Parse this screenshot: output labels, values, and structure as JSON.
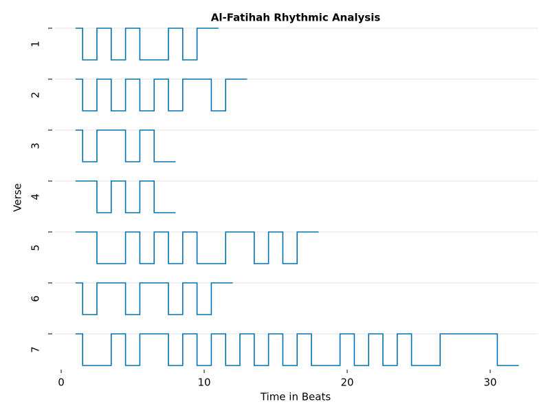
{
  "chart_data": {
    "type": "step",
    "title": "Al-Fatihah Rhythmic Analysis",
    "x_label": "Time in Beats",
    "y_label": "Verse",
    "categories": [
      "1",
      "2",
      "3",
      "4",
      "5",
      "6",
      "7"
    ],
    "color": "#0072b2",
    "xlim": [
      -0.5,
      33.5
    ],
    "xticks": [
      0,
      10,
      20,
      30
    ],
    "grid": true,
    "series": [
      {
        "x": [
          1,
          1.5,
          2.5,
          3.5,
          4.5,
          5.5,
          7.5,
          8.5,
          9.5,
          11
        ],
        "values": [
          1,
          0,
          1,
          0,
          1,
          0,
          1,
          0,
          1,
          1
        ]
      },
      {
        "x": [
          1,
          1.5,
          2.5,
          3.5,
          4.5,
          5.5,
          6.5,
          7.5,
          8.5,
          10.5,
          11.5,
          13
        ],
        "values": [
          1,
          0,
          1,
          0,
          1,
          0,
          1,
          0,
          1,
          0,
          1,
          1
        ]
      },
      {
        "x": [
          1,
          1.5,
          2.5,
          4.5,
          5.5,
          6.5,
          8
        ],
        "values": [
          1,
          0,
          1,
          0,
          1,
          0,
          0
        ]
      },
      {
        "x": [
          1,
          2.5,
          3.5,
          4.5,
          5.5,
          6.5,
          8
        ],
        "values": [
          1,
          0,
          1,
          0,
          1,
          0,
          0
        ]
      },
      {
        "x": [
          1,
          2.5,
          4.5,
          5.5,
          6.5,
          7.5,
          8.5,
          9.5,
          11.5,
          13.5,
          14.5,
          15.5,
          16.5,
          18
        ],
        "values": [
          1,
          0,
          1,
          0,
          1,
          0,
          1,
          0,
          1,
          0,
          1,
          0,
          1,
          1
        ]
      },
      {
        "x": [
          1,
          1.5,
          2.5,
          4.5,
          5.5,
          7.5,
          8.5,
          9.5,
          10.5,
          12
        ],
        "values": [
          1,
          0,
          1,
          0,
          1,
          0,
          1,
          0,
          1,
          1
        ]
      },
      {
        "x": [
          1,
          1.5,
          3.5,
          4.5,
          5.5,
          7.5,
          8.5,
          9.5,
          10.5,
          11.5,
          12.5,
          13.5,
          14.5,
          15.5,
          16.5,
          17.5,
          19.5,
          20.5,
          21.5,
          22.5,
          23.5,
          24.5,
          26.5,
          30.5,
          32
        ],
        "values": [
          1,
          0,
          1,
          0,
          1,
          0,
          1,
          0,
          1,
          0,
          1,
          0,
          1,
          0,
          1,
          0,
          1,
          0,
          1,
          0,
          1,
          0,
          1,
          0,
          0
        ]
      }
    ]
  }
}
